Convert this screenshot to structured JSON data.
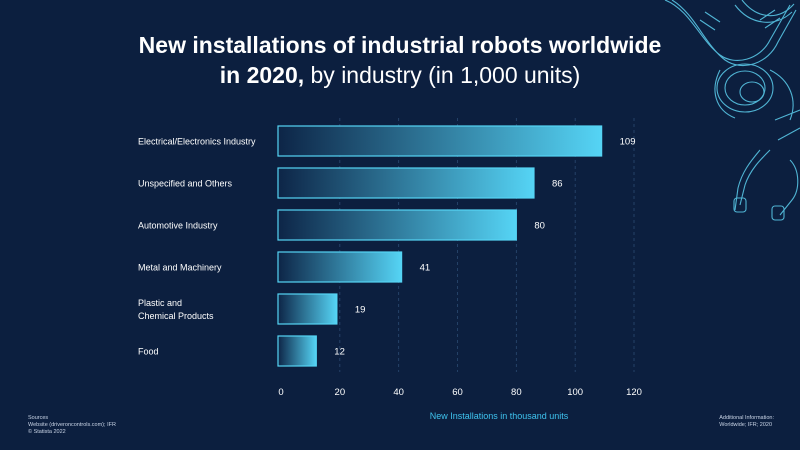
{
  "title": {
    "bold": "New installations of industrial robots worldwide",
    "bold2": "in 2020,",
    "regular": "by industry (in 1,000 units)"
  },
  "footer": {
    "sources_label": "Sources",
    "sources_text": "Website (driveroncontrols.com); IFR",
    "copyright": "© Statista 2022",
    "additional_label": "Additional Information:",
    "additional_text": "Worldwide; IFR; 2020"
  },
  "colors": {
    "background": "#0c1f3f",
    "bar_start": "#0d2547",
    "bar_end": "#55d4f5",
    "axis_label": "#3fc3ee",
    "text": "#ffffff"
  },
  "chart_data": {
    "type": "bar",
    "orientation": "horizontal",
    "categories": [
      "Electrical/Electronics Industry",
      "Unspecified and Others",
      "Automotive Industry",
      "Metal and Machinery",
      "Plastic and|Chemical Products",
      "Food"
    ],
    "values": [
      109,
      86,
      80,
      41,
      19,
      12
    ],
    "xlabel": "New Installations in thousand units",
    "ylabel": "",
    "xlim": [
      0,
      120
    ],
    "xticks": [
      0,
      20,
      40,
      60,
      80,
      100,
      120
    ],
    "grid": "vertical dashed"
  }
}
